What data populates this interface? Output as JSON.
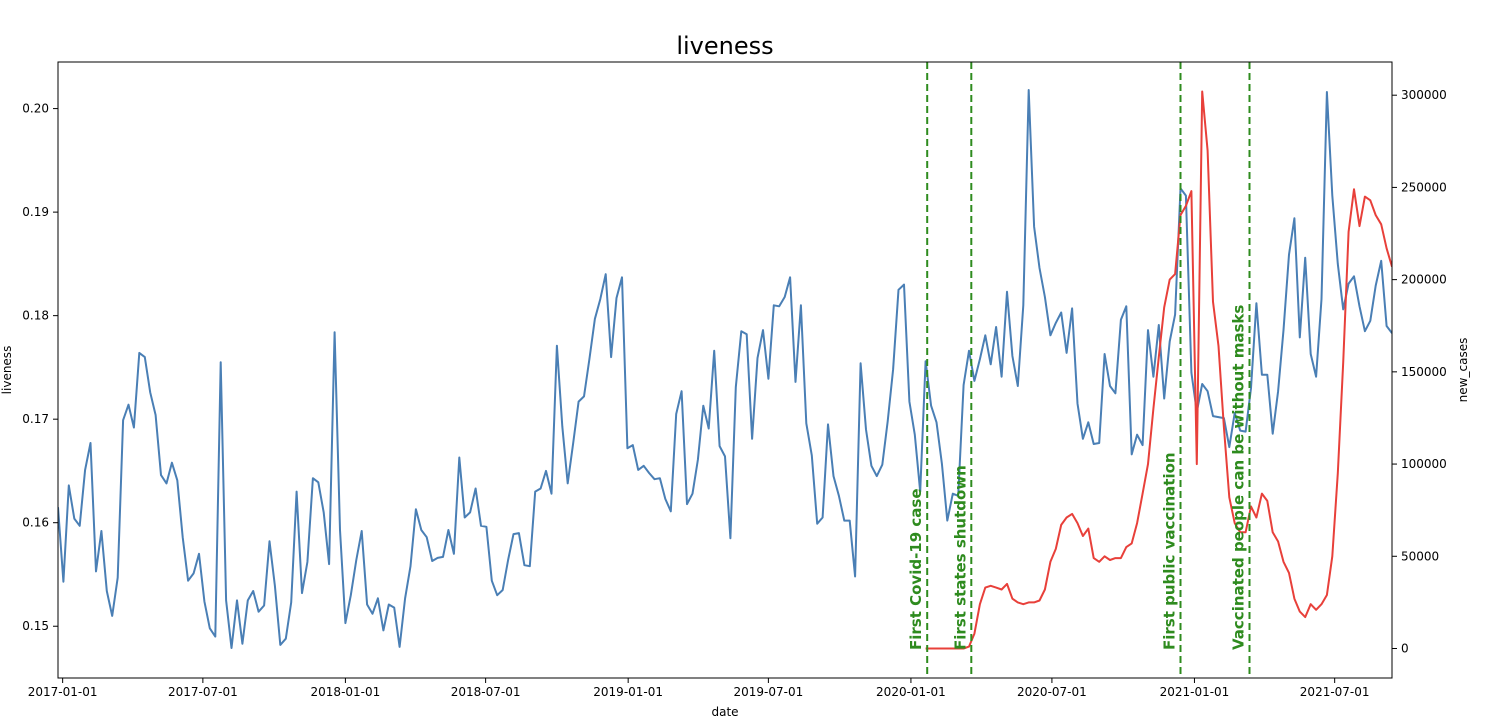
{
  "chart_data": {
    "type": "line",
    "title": "liveness",
    "xlabel": "date",
    "ylabel_left": "liveness",
    "ylabel_right": "new_cases",
    "x_ticks": [
      "2017-01-01",
      "2017-07-01",
      "2018-01-01",
      "2018-07-01",
      "2019-01-01",
      "2019-07-01",
      "2020-01-01",
      "2020-07-01",
      "2021-01-01",
      "2021-07-01"
    ],
    "y_left_ticks": [
      "0.15",
      "0.16",
      "0.17",
      "0.18",
      "0.19",
      "0.20"
    ],
    "y_right_ticks": [
      "0",
      "50000",
      "100000",
      "150000",
      "200000",
      "250000",
      "300000"
    ],
    "xlim": [
      "2016-12-26",
      "2021-09-13"
    ],
    "ylim_left": [
      0.145,
      0.2045
    ],
    "ylim_right": [
      -16000,
      318000
    ],
    "colors": {
      "liveness": "#4a7fb5",
      "new_cases": "#e8403a",
      "events": "#2e8b1e"
    },
    "events": [
      {
        "date": "2020-01-22",
        "label": "First Covid-19 case"
      },
      {
        "date": "2020-03-19",
        "label": "First states shutdown"
      },
      {
        "date": "2020-12-14",
        "label": "First public vaccination"
      },
      {
        "date": "2021-03-13",
        "label": "Vaccinated people can be without masks"
      }
    ],
    "series": [
      {
        "name": "liveness",
        "axis": "left",
        "x": [
          "2016-12-26",
          "2017-01-02",
          "2017-01-09",
          "2017-01-16",
          "2017-01-23",
          "2017-01-30",
          "2017-02-06",
          "2017-02-13",
          "2017-02-20",
          "2017-02-27",
          "2017-03-06",
          "2017-03-13",
          "2017-03-20",
          "2017-03-27",
          "2017-04-03",
          "2017-04-10",
          "2017-04-17",
          "2017-04-24",
          "2017-05-01",
          "2017-05-08",
          "2017-05-15",
          "2017-05-22",
          "2017-05-29",
          "2017-06-05",
          "2017-06-12",
          "2017-06-19",
          "2017-06-26",
          "2017-07-03",
          "2017-07-10",
          "2017-07-17",
          "2017-07-24",
          "2017-07-31",
          "2017-08-07",
          "2017-08-14",
          "2017-08-21",
          "2017-08-28",
          "2017-09-04",
          "2017-09-11",
          "2017-09-18",
          "2017-09-25",
          "2017-10-02",
          "2017-10-09",
          "2017-10-16",
          "2017-10-23",
          "2017-10-30",
          "2017-11-06",
          "2017-11-13",
          "2017-11-20",
          "2017-11-27",
          "2017-12-04",
          "2017-12-11",
          "2017-12-18",
          "2017-12-25",
          "2018-01-01",
          "2018-01-08",
          "2018-01-15",
          "2018-01-22",
          "2018-01-29",
          "2018-02-05",
          "2018-02-12",
          "2018-02-19",
          "2018-02-26",
          "2018-03-05",
          "2018-03-12",
          "2018-03-19",
          "2018-03-26",
          "2018-04-02",
          "2018-04-09",
          "2018-04-16",
          "2018-04-23",
          "2018-04-30",
          "2018-05-07",
          "2018-05-14",
          "2018-05-21",
          "2018-05-28",
          "2018-06-04",
          "2018-06-11",
          "2018-06-18",
          "2018-06-25",
          "2018-07-02",
          "2018-07-09",
          "2018-07-16",
          "2018-07-23",
          "2018-07-30",
          "2018-08-06",
          "2018-08-13",
          "2018-08-20",
          "2018-08-27",
          "2018-09-03",
          "2018-09-10",
          "2018-09-17",
          "2018-09-24",
          "2018-10-01",
          "2018-10-08",
          "2018-10-15",
          "2018-10-22",
          "2018-10-29",
          "2018-11-05",
          "2018-11-12",
          "2018-11-19",
          "2018-11-26",
          "2018-12-03",
          "2018-12-10",
          "2018-12-17",
          "2018-12-24",
          "2018-12-31",
          "2019-01-07",
          "2019-01-14",
          "2019-01-21",
          "2019-01-28",
          "2019-02-04",
          "2019-02-11",
          "2019-02-18",
          "2019-02-25",
          "2019-03-04",
          "2019-03-11",
          "2019-03-18",
          "2019-03-25",
          "2019-04-01",
          "2019-04-08",
          "2019-04-15",
          "2019-04-22",
          "2019-04-29",
          "2019-05-06",
          "2019-05-13",
          "2019-05-20",
          "2019-05-27",
          "2019-06-03",
          "2019-06-10",
          "2019-06-17",
          "2019-06-24",
          "2019-07-01",
          "2019-07-08",
          "2019-07-15",
          "2019-07-22",
          "2019-07-29",
          "2019-08-05",
          "2019-08-12",
          "2019-08-19",
          "2019-08-26",
          "2019-09-02",
          "2019-09-09",
          "2019-09-16",
          "2019-09-23",
          "2019-09-30",
          "2019-10-07",
          "2019-10-14",
          "2019-10-21",
          "2019-10-28",
          "2019-11-04",
          "2019-11-11",
          "2019-11-18",
          "2019-11-25",
          "2019-12-02",
          "2019-12-09",
          "2019-12-16",
          "2019-12-23",
          "2019-12-30",
          "2020-01-06",
          "2020-01-13",
          "2020-01-20",
          "2020-01-27",
          "2020-02-03",
          "2020-02-10",
          "2020-02-17",
          "2020-02-24",
          "2020-03-02",
          "2020-03-09",
          "2020-03-16",
          "2020-03-23",
          "2020-03-30",
          "2020-04-06",
          "2020-04-13",
          "2020-04-20",
          "2020-04-27",
          "2020-05-04",
          "2020-05-11",
          "2020-05-18",
          "2020-05-25",
          "2020-06-01",
          "2020-06-08",
          "2020-06-15",
          "2020-06-22",
          "2020-06-29",
          "2020-07-06",
          "2020-07-13",
          "2020-07-20",
          "2020-07-27",
          "2020-08-03",
          "2020-08-10",
          "2020-08-17",
          "2020-08-24",
          "2020-08-31",
          "2020-09-07",
          "2020-09-14",
          "2020-09-21",
          "2020-09-28",
          "2020-10-05",
          "2020-10-12",
          "2020-10-19",
          "2020-10-26",
          "2020-11-02",
          "2020-11-09",
          "2020-11-16",
          "2020-11-23",
          "2020-11-30",
          "2020-12-07",
          "2020-12-14",
          "2020-12-21",
          "2020-12-28",
          "2021-01-04",
          "2021-01-11",
          "2021-01-18",
          "2021-01-25",
          "2021-02-01",
          "2021-02-08",
          "2021-02-15",
          "2021-02-22",
          "2021-03-01",
          "2021-03-08",
          "2021-03-15",
          "2021-03-22",
          "2021-03-29",
          "2021-04-05",
          "2021-04-12",
          "2021-04-19",
          "2021-04-26",
          "2021-05-03",
          "2021-05-10",
          "2021-05-17",
          "2021-05-24",
          "2021-05-31",
          "2021-06-07",
          "2021-06-14",
          "2021-06-21",
          "2021-06-28",
          "2021-07-05",
          "2021-07-12",
          "2021-07-19",
          "2021-07-26",
          "2021-08-02",
          "2021-08-09",
          "2021-08-16",
          "2021-08-23",
          "2021-08-30",
          "2021-09-06",
          "2021-09-13"
        ],
        "values": [
          0.1615,
          0.1543,
          0.1636,
          0.1604,
          0.1597,
          0.1651,
          0.1677,
          0.1553,
          0.1592,
          0.1534,
          0.151,
          0.1547,
          0.1699,
          0.1714,
          0.1692,
          0.1764,
          0.176,
          0.1726,
          0.1704,
          0.1646,
          0.1638,
          0.1658,
          0.1641,
          0.1586,
          0.1544,
          0.1551,
          0.157,
          0.1524,
          0.1498,
          0.149,
          0.1755,
          0.1525,
          0.1479,
          0.1525,
          0.1483,
          0.1525,
          0.1534,
          0.1514,
          0.152,
          0.1582,
          0.1539,
          0.1482,
          0.1488,
          0.1523,
          0.163,
          0.1532,
          0.1562,
          0.1643,
          0.1639,
          0.161,
          0.156,
          0.1784,
          0.1593,
          0.1503,
          0.153,
          0.1564,
          0.1592,
          0.1521,
          0.1512,
          0.1527,
          0.1496,
          0.1521,
          0.1518,
          0.148,
          0.1527,
          0.1558,
          0.1613,
          0.1593,
          0.1586,
          0.1563,
          0.1566,
          0.1567,
          0.1593,
          0.157,
          0.1663,
          0.1605,
          0.161,
          0.1633,
          0.1597,
          0.1596,
          0.1544,
          0.153,
          0.1535,
          0.1564,
          0.1589,
          0.159,
          0.1559,
          0.1558,
          0.163,
          0.1633,
          0.165,
          0.1628,
          0.1771,
          0.1693,
          0.1638,
          0.1677,
          0.1717,
          0.1722,
          0.1758,
          0.1797,
          0.1816,
          0.184,
          0.176,
          0.1817,
          0.1837,
          0.1672,
          0.1675,
          0.1651,
          0.1655,
          0.1648,
          0.1642,
          0.1643,
          0.1623,
          0.1611,
          0.1705,
          0.1727,
          0.1618,
          0.1628,
          0.1661,
          0.1713,
          0.1691,
          0.1766,
          0.1674,
          0.1664,
          0.1585,
          0.1731,
          0.1785,
          0.1782,
          0.1681,
          0.1759,
          0.1786,
          0.1739,
          0.181,
          0.1809,
          0.1818,
          0.1837,
          0.1736,
          0.181,
          0.1696,
          0.1665,
          0.1599,
          0.1605,
          0.1695,
          0.1645,
          0.1626,
          0.1602,
          0.1602,
          0.1548,
          0.1754,
          0.169,
          0.1655,
          0.1645,
          0.1656,
          0.1698,
          0.1748,
          0.1825,
          0.183,
          0.1717,
          0.1685,
          0.163,
          0.1756,
          0.1713,
          0.1697,
          0.1657,
          0.1602,
          0.1628,
          0.1626,
          0.1733,
          0.1766,
          0.1737,
          0.1758,
          0.1781,
          0.1753,
          0.1789,
          0.1741,
          0.1823,
          0.1761,
          0.1732,
          0.181,
          0.2018,
          0.1886,
          0.1846,
          0.1818,
          0.1781,
          0.1793,
          0.1803,
          0.1764,
          0.1807,
          0.1715,
          0.1681,
          0.1697,
          0.1676,
          0.1677,
          0.1763,
          0.1732,
          0.1725,
          0.1796,
          0.1809,
          0.1666,
          0.1685,
          0.1675,
          0.1786,
          0.1741,
          0.1791,
          0.172,
          0.1775,
          0.1801,
          0.1923,
          0.1916,
          0.1745,
          0.1707,
          0.1734,
          0.1727,
          0.1703,
          0.1702,
          0.1701,
          0.1673,
          0.1706,
          0.1689,
          0.1688,
          0.173,
          0.1812,
          0.1743,
          0.1743,
          0.1686,
          0.1727,
          0.1786,
          0.1859,
          0.1894,
          0.1779,
          0.1856,
          0.1763,
          0.1741,
          0.1816,
          0.2016,
          0.1916,
          0.185,
          0.1806,
          0.1831,
          0.1838,
          0.1809,
          0.1785,
          0.1795,
          0.1829,
          0.1853,
          0.179,
          0.1783
        ]
      },
      {
        "name": "new_cases",
        "axis": "right",
        "x": [
          "2020-01-20",
          "2020-01-27",
          "2020-02-03",
          "2020-02-10",
          "2020-02-17",
          "2020-02-24",
          "2020-03-02",
          "2020-03-09",
          "2020-03-16",
          "2020-03-23",
          "2020-03-30",
          "2020-04-06",
          "2020-04-13",
          "2020-04-20",
          "2020-04-27",
          "2020-05-04",
          "2020-05-11",
          "2020-05-18",
          "2020-05-25",
          "2020-06-01",
          "2020-06-08",
          "2020-06-15",
          "2020-06-22",
          "2020-06-29",
          "2020-07-06",
          "2020-07-13",
          "2020-07-20",
          "2020-07-27",
          "2020-08-03",
          "2020-08-10",
          "2020-08-17",
          "2020-08-24",
          "2020-08-31",
          "2020-09-07",
          "2020-09-14",
          "2020-09-21",
          "2020-09-28",
          "2020-10-05",
          "2020-10-12",
          "2020-10-19",
          "2020-10-26",
          "2020-11-02",
          "2020-11-09",
          "2020-11-16",
          "2020-11-23",
          "2020-11-30",
          "2020-12-07",
          "2020-12-14",
          "2020-12-21",
          "2020-12-28",
          "2021-01-04",
          "2021-01-11",
          "2021-01-18",
          "2021-01-25",
          "2021-02-01",
          "2021-02-08",
          "2021-02-15",
          "2021-02-22",
          "2021-03-01",
          "2021-03-08",
          "2021-03-15",
          "2021-03-22",
          "2021-03-29",
          "2021-04-05",
          "2021-04-12",
          "2021-04-19",
          "2021-04-26",
          "2021-05-03",
          "2021-05-10",
          "2021-05-17",
          "2021-05-24",
          "2021-05-31",
          "2021-06-07",
          "2021-06-14",
          "2021-06-21",
          "2021-06-28",
          "2021-07-05",
          "2021-07-12",
          "2021-07-19",
          "2021-07-26",
          "2021-08-02",
          "2021-08-09",
          "2021-08-16",
          "2021-08-23",
          "2021-08-30",
          "2021-09-06",
          "2021-09-13"
        ],
        "values": [
          0,
          0,
          0,
          0,
          0,
          0,
          0,
          0,
          1000,
          8000,
          24000,
          33000,
          34000,
          33000,
          32000,
          35000,
          27000,
          25000,
          24000,
          25000,
          25000,
          26000,
          32000,
          47000,
          54000,
          67000,
          71000,
          73000,
          68000,
          61000,
          65000,
          49000,
          47000,
          50000,
          48000,
          49000,
          49000,
          55000,
          57000,
          68000,
          84000,
          100000,
          130000,
          158000,
          185000,
          200000,
          203000,
          235000,
          240000,
          248000,
          100000,
          302000,
          270000,
          188000,
          164000,
          120000,
          82000,
          68000,
          63000,
          63000,
          77000,
          71000,
          84000,
          80000,
          63000,
          58000,
          47000,
          41000,
          27000,
          20000,
          17000,
          24000,
          21000,
          24000,
          29000,
          50000,
          95000,
          155000,
          226000,
          249000,
          229000,
          245000,
          243000,
          235000,
          230000,
          217000,
          207000
        ]
      }
    ]
  }
}
